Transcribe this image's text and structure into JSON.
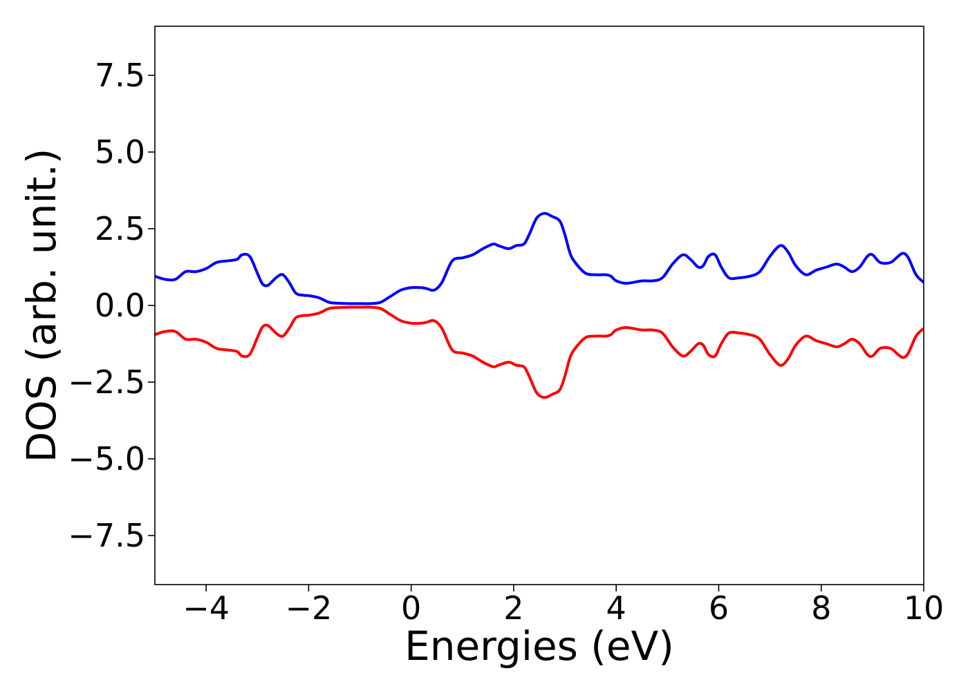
{
  "chart_data": {
    "type": "line",
    "title": "",
    "xlabel": "Energies (eV)",
    "ylabel": "DOS (arb. unit.)",
    "xlim": [
      -5,
      10
    ],
    "ylim": [
      -9.1,
      9.1
    ],
    "xticks": [
      -4,
      -2,
      0,
      2,
      4,
      6,
      8,
      10
    ],
    "xtick_labels": [
      "−4",
      "−2",
      "0",
      "2",
      "4",
      "6",
      "8",
      "10"
    ],
    "yticks": [
      -7.5,
      -5.0,
      -2.5,
      0.0,
      2.5,
      5.0,
      7.5
    ],
    "ytick_labels": [
      "−7.5",
      "−5.0",
      "−2.5",
      "0.0",
      "2.5",
      "5.0",
      "7.5"
    ],
    "grid": false,
    "series": [
      {
        "color": "#0000ff",
        "x": [
          -5.0,
          -4.8,
          -4.6,
          -4.4,
          -4.2,
          -4.0,
          -3.8,
          -3.6,
          -3.4,
          -3.3,
          -3.15,
          -3.0,
          -2.9,
          -2.8,
          -2.7,
          -2.6,
          -2.5,
          -2.38,
          -2.25,
          -2.1,
          -2.0,
          -1.8,
          -1.6,
          -1.4,
          -1.2,
          -1.0,
          -0.8,
          -0.6,
          -0.4,
          -0.2,
          0.0,
          0.2,
          0.3,
          0.45,
          0.6,
          0.8,
          1.0,
          1.2,
          1.4,
          1.6,
          1.7,
          1.9,
          2.05,
          2.2,
          2.3,
          2.45,
          2.6,
          2.75,
          2.9,
          3.0,
          3.1,
          3.2,
          3.4,
          3.6,
          3.8,
          3.9,
          4.0,
          4.2,
          4.5,
          4.7,
          4.9,
          5.1,
          5.3,
          5.45,
          5.6,
          5.7,
          5.8,
          5.93,
          6.05,
          6.2,
          6.4,
          6.6,
          6.8,
          7.0,
          7.2,
          7.35,
          7.5,
          7.7,
          7.9,
          8.1,
          8.3,
          8.45,
          8.6,
          8.75,
          8.9,
          9.0,
          9.15,
          9.35,
          9.5,
          9.6,
          9.7,
          9.85,
          10.0
        ],
        "y": [
          0.95,
          0.85,
          0.85,
          1.1,
          1.1,
          1.2,
          1.4,
          1.45,
          1.5,
          1.65,
          1.6,
          1.05,
          0.7,
          0.65,
          0.8,
          0.95,
          1.0,
          0.75,
          0.4,
          0.33,
          0.32,
          0.25,
          0.1,
          0.07,
          0.06,
          0.06,
          0.06,
          0.1,
          0.3,
          0.5,
          0.58,
          0.58,
          0.55,
          0.5,
          0.75,
          1.45,
          1.55,
          1.65,
          1.85,
          2.0,
          1.95,
          1.85,
          1.95,
          2.0,
          2.3,
          2.85,
          3.0,
          2.9,
          2.75,
          2.3,
          1.7,
          1.4,
          1.05,
          1.0,
          1.0,
          0.95,
          0.8,
          0.72,
          0.8,
          0.8,
          0.9,
          1.35,
          1.65,
          1.5,
          1.25,
          1.3,
          1.6,
          1.65,
          1.25,
          0.9,
          0.9,
          0.95,
          1.1,
          1.6,
          1.95,
          1.75,
          1.3,
          1.0,
          1.15,
          1.25,
          1.35,
          1.25,
          1.1,
          1.25,
          1.6,
          1.65,
          1.4,
          1.4,
          1.6,
          1.7,
          1.55,
          1.0,
          0.75
        ]
      },
      {
        "color": "#ff0000",
        "x": [
          -5.0,
          -4.8,
          -4.6,
          -4.4,
          -4.2,
          -4.0,
          -3.8,
          -3.6,
          -3.4,
          -3.3,
          -3.15,
          -3.0,
          -2.9,
          -2.8,
          -2.7,
          -2.6,
          -2.5,
          -2.38,
          -2.25,
          -2.1,
          -2.0,
          -1.8,
          -1.6,
          -1.4,
          -1.2,
          -1.0,
          -0.8,
          -0.6,
          -0.4,
          -0.2,
          0.0,
          0.2,
          0.3,
          0.45,
          0.6,
          0.8,
          1.0,
          1.2,
          1.4,
          1.6,
          1.7,
          1.9,
          2.05,
          2.2,
          2.3,
          2.45,
          2.6,
          2.75,
          2.9,
          3.0,
          3.1,
          3.2,
          3.4,
          3.6,
          3.8,
          3.9,
          4.0,
          4.2,
          4.5,
          4.7,
          4.9,
          5.1,
          5.3,
          5.45,
          5.6,
          5.7,
          5.8,
          5.93,
          6.05,
          6.2,
          6.4,
          6.6,
          6.8,
          7.0,
          7.2,
          7.35,
          7.5,
          7.7,
          7.9,
          8.1,
          8.3,
          8.45,
          8.6,
          8.75,
          8.9,
          9.0,
          9.15,
          9.35,
          9.5,
          9.6,
          9.7,
          9.85,
          10.0
        ],
        "y": [
          -0.95,
          -0.85,
          -0.85,
          -1.1,
          -1.1,
          -1.2,
          -1.4,
          -1.45,
          -1.5,
          -1.65,
          -1.6,
          -1.05,
          -0.7,
          -0.65,
          -0.8,
          -0.95,
          -1.0,
          -0.75,
          -0.4,
          -0.33,
          -0.32,
          -0.25,
          -0.1,
          -0.07,
          -0.06,
          -0.06,
          -0.06,
          -0.1,
          -0.3,
          -0.5,
          -0.58,
          -0.58,
          -0.55,
          -0.5,
          -0.75,
          -1.45,
          -1.55,
          -1.65,
          -1.85,
          -2.0,
          -1.95,
          -1.85,
          -1.95,
          -2.0,
          -2.3,
          -2.85,
          -3.0,
          -2.9,
          -2.75,
          -2.3,
          -1.7,
          -1.4,
          -1.05,
          -1.0,
          -1.0,
          -0.95,
          -0.8,
          -0.72,
          -0.8,
          -0.8,
          -0.9,
          -1.35,
          -1.65,
          -1.5,
          -1.25,
          -1.3,
          -1.6,
          -1.65,
          -1.25,
          -0.9,
          -0.9,
          -0.95,
          -1.1,
          -1.6,
          -1.95,
          -1.75,
          -1.3,
          -1.0,
          -1.15,
          -1.25,
          -1.35,
          -1.25,
          -1.1,
          -1.25,
          -1.6,
          -1.65,
          -1.4,
          -1.4,
          -1.6,
          -1.7,
          -1.55,
          -1.0,
          -0.75
        ]
      }
    ]
  }
}
